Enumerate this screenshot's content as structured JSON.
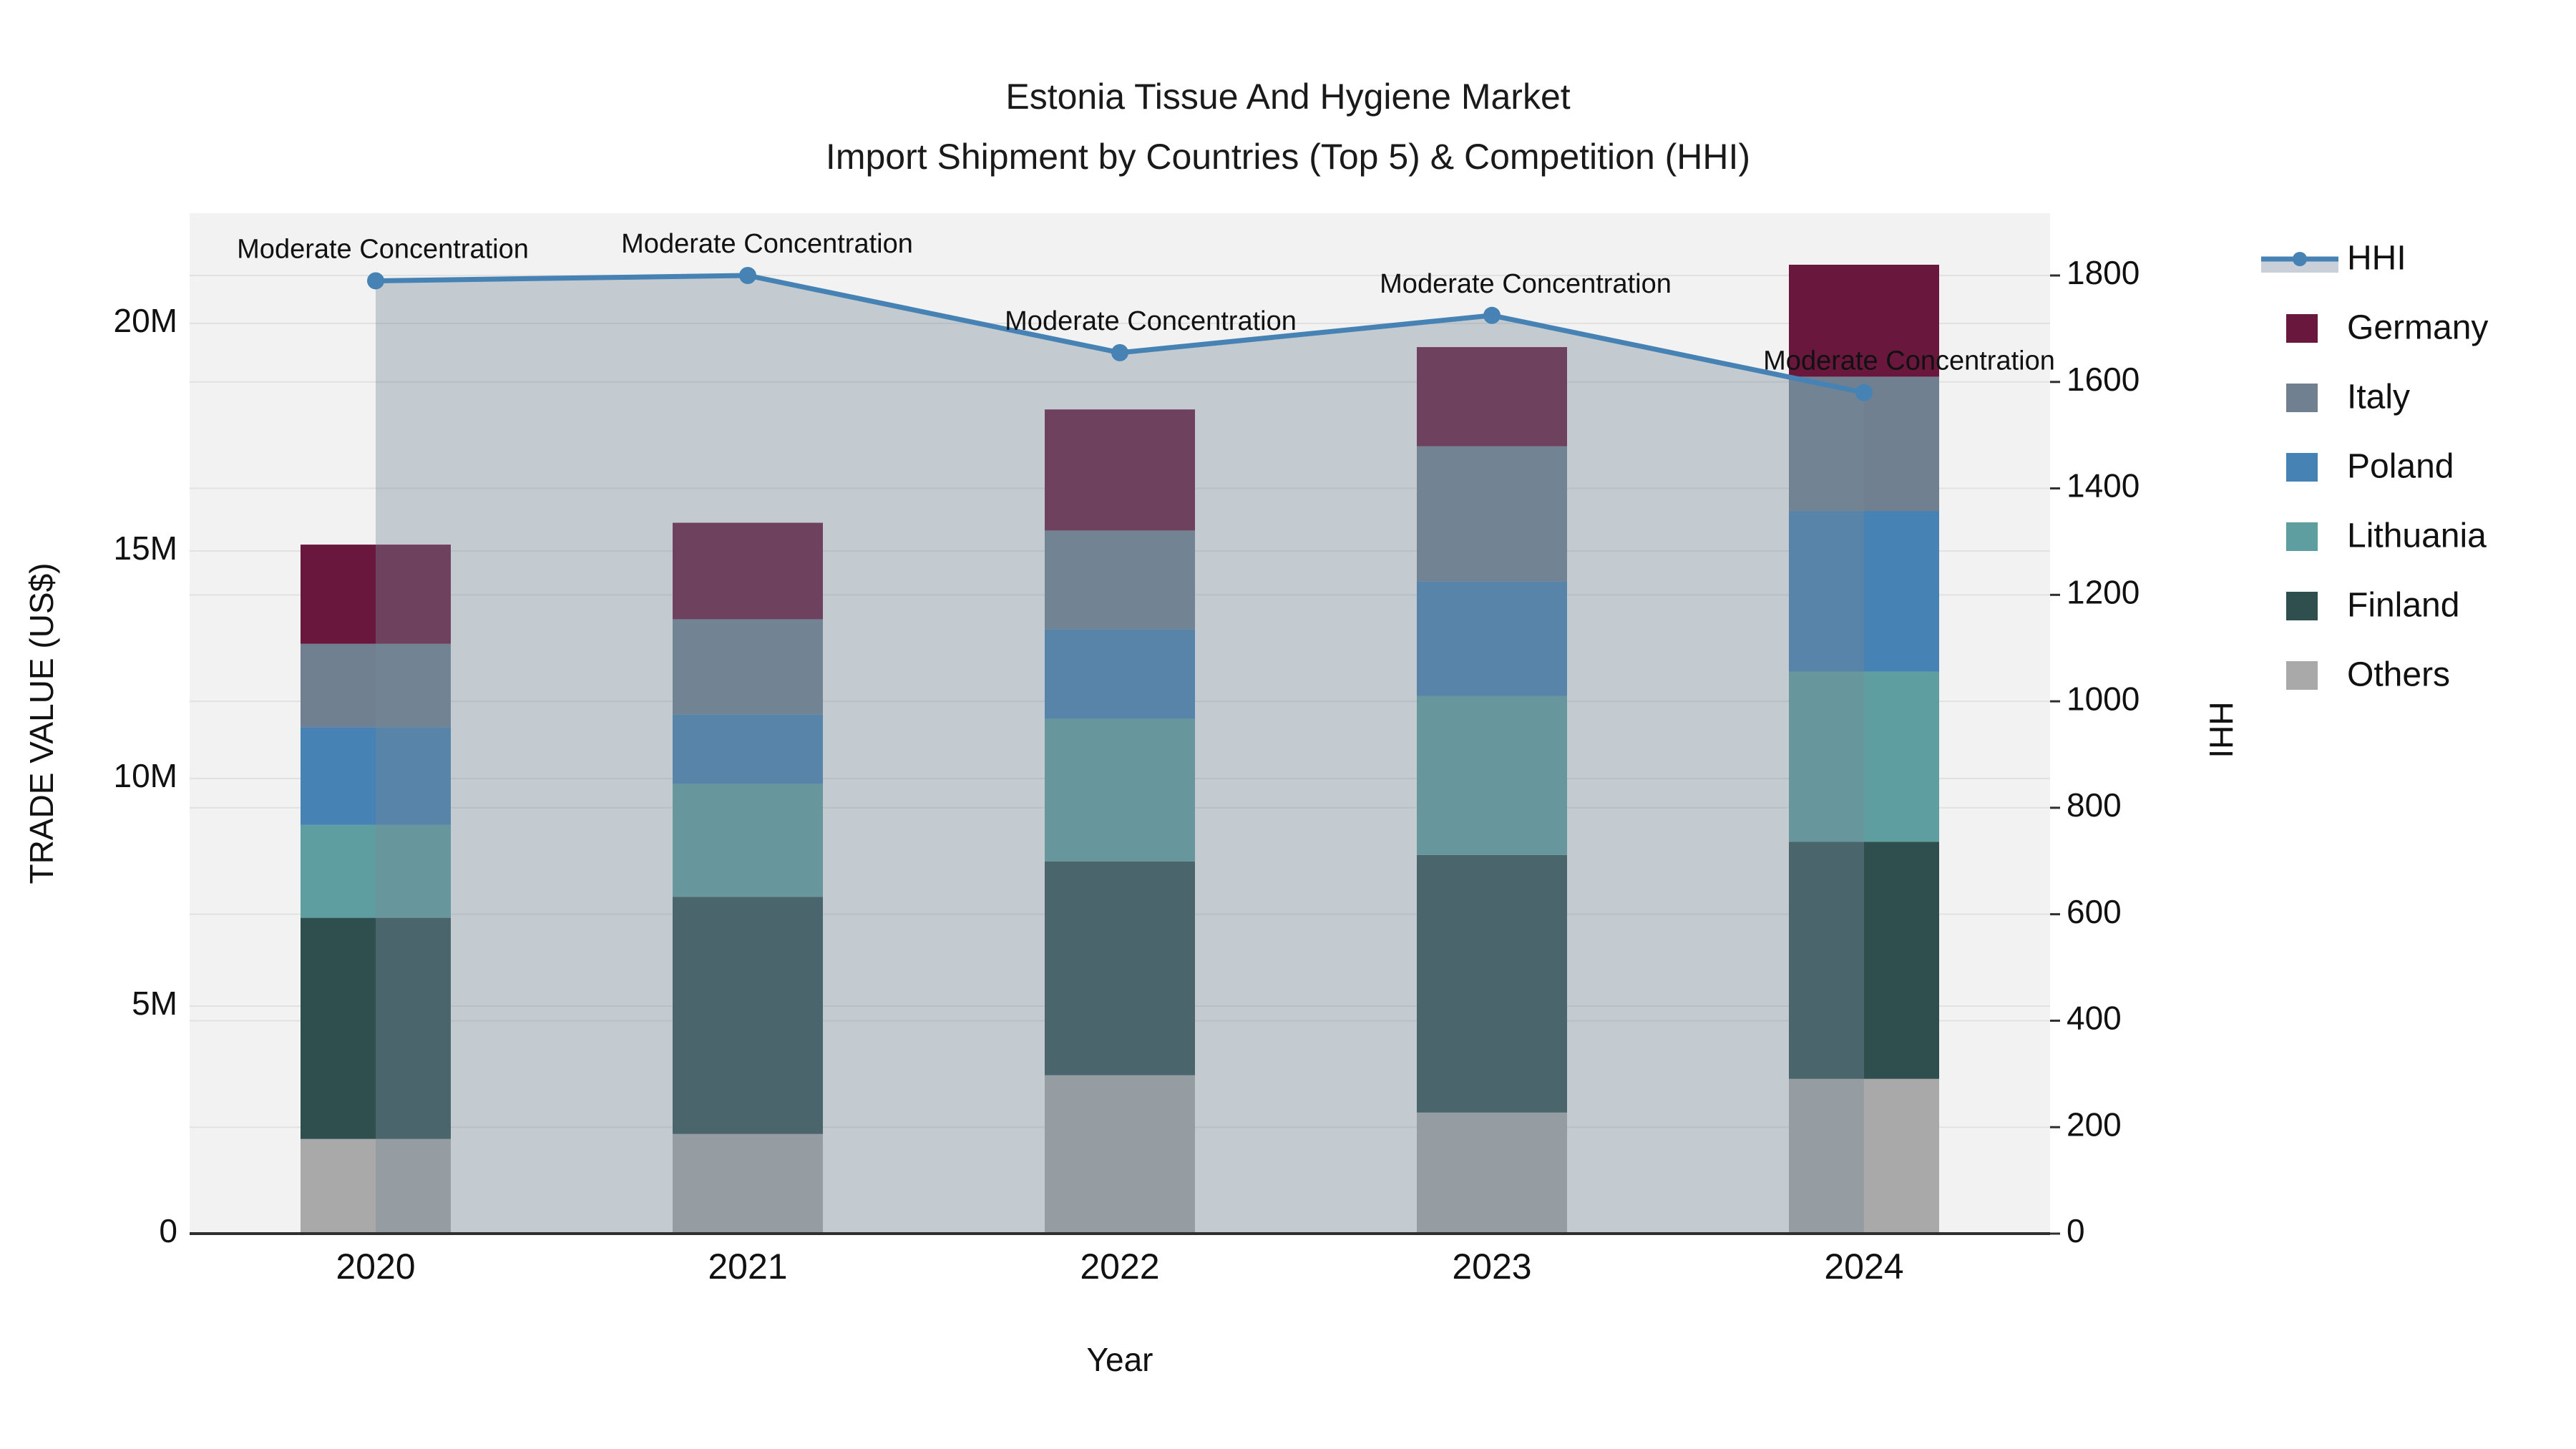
{
  "title_line1": "Estonia Tissue And Hygiene Market",
  "title_line2": "Import Shipment by Countries (Top 5) & Competition (HHI)",
  "axes": {
    "left_title": "TRADE VALUE (US$)",
    "left_tick_labels": [
      "0",
      "5M",
      "10M",
      "15M",
      "20M"
    ],
    "left_tick_values_m": [
      0,
      5,
      10,
      15,
      20
    ],
    "right_title": "HHI",
    "right_tick_labels": [
      "0",
      "200",
      "400",
      "600",
      "800",
      "1000",
      "1200",
      "1400",
      "1600",
      "1800"
    ],
    "right_tick_values": [
      0,
      200,
      400,
      600,
      800,
      1000,
      1200,
      1400,
      1600,
      1800
    ],
    "x_title": "Year"
  },
  "chart_data": {
    "type": "bar",
    "subtype": "stacked-bars-with-line-area",
    "categories": [
      "2020",
      "2021",
      "2022",
      "2023",
      "2024"
    ],
    "bar_value_unit": "million US$",
    "series": [
      {
        "name": "Others",
        "color": "#a9a9a9",
        "values": [
          2.08,
          2.19,
          3.48,
          2.66,
          3.4
        ]
      },
      {
        "name": "Finland",
        "color": "#2f4f4f",
        "values": [
          4.86,
          5.21,
          4.7,
          5.66,
          5.21
        ]
      },
      {
        "name": "Lithuania",
        "color": "#5f9ea0",
        "values": [
          2.04,
          2.48,
          3.13,
          3.49,
          3.74
        ]
      },
      {
        "name": "Poland",
        "color": "#4682b4",
        "values": [
          2.15,
          1.53,
          1.97,
          2.52,
          3.53
        ]
      },
      {
        "name": "Italy",
        "color": "#708090",
        "values": [
          1.83,
          2.09,
          2.17,
          2.97,
          2.95
        ]
      },
      {
        "name": "Germany",
        "color": "#69173d",
        "values": [
          2.18,
          2.12,
          2.66,
          2.18,
          2.46
        ]
      }
    ],
    "bar_totals_m": [
      15.14,
      15.62,
      18.11,
      19.48,
      21.29
    ],
    "line": {
      "name": "HHI",
      "color": "#4682b4",
      "area_fill_color": "rgba(119,136,153,0.38)",
      "values": [
        1790,
        1800,
        1655,
        1725,
        1580
      ]
    },
    "annotations": [
      {
        "text": "Moderate Concentration"
      },
      {
        "text": "Moderate Concentration"
      },
      {
        "text": "Moderate Concentration"
      },
      {
        "text": "Moderate Concentration"
      },
      {
        "text": "Moderate Concentration"
      }
    ],
    "ylim_left_m": [
      0,
      22.4
    ],
    "ylim_right": [
      0,
      1917
    ],
    "grid": true,
    "legend_position": "top-right-outside",
    "legend": [
      "HHI",
      "Germany",
      "Italy",
      "Poland",
      "Lithuania",
      "Finland",
      "Others"
    ]
  },
  "colors": {
    "plot_bg": "#f2f2f2",
    "gridline": "#e1e1e1",
    "axis_line": "#2f2f2f",
    "text": "#111111"
  }
}
